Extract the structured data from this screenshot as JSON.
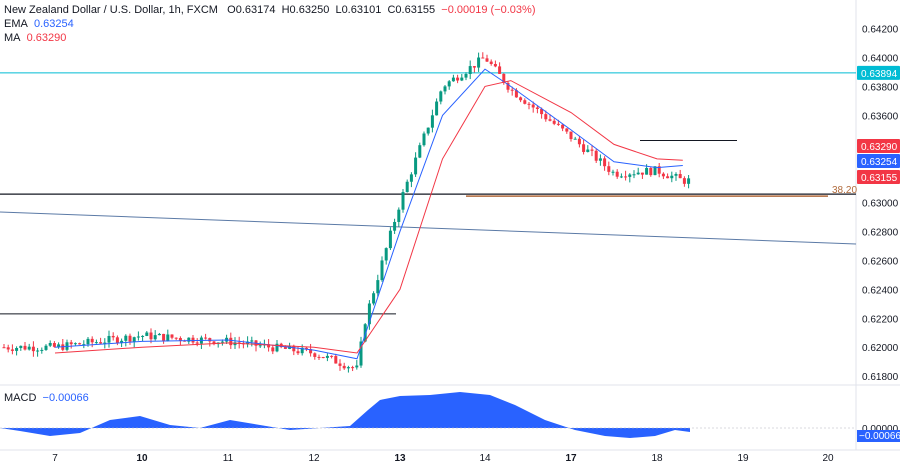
{
  "header": {
    "title": "New Zealand Dollar / U.S. Dollar, 1h, FXCM",
    "open_label": "O",
    "open": "0.63174",
    "high_label": "H",
    "high": "0.63250",
    "low_label": "L",
    "low": "0.63101",
    "close_label": "C",
    "close": "0.63155",
    "change": "−0.00019 (−0.03%)"
  },
  "indicators": {
    "ema_label": "EMA",
    "ema_value": "0.63254",
    "ma_label": "MA",
    "ma_value": "0.63290",
    "macd_label": "MACD",
    "macd_value": "−0.00066"
  },
  "colors": {
    "up": "#089981",
    "down": "#f23645",
    "ema": "#2962ff",
    "ma": "#f23645",
    "macd": "#2962ff",
    "resistance": "#00bcd4",
    "fib": "#b06a3b",
    "trend": "#5b7aa6"
  },
  "chart_data": {
    "type": "line",
    "title": "New Zealand Dollar / U.S. Dollar, 1h, FXCM",
    "ylim": [
      0.6176,
      0.643
    ],
    "y_ticks": [
      "0.64200",
      "0.64000",
      "0.63800",
      "0.63600",
      "0.63400",
      "0.63200",
      "0.63000",
      "0.62800",
      "0.62600",
      "0.62400",
      "0.62200",
      "0.62000",
      "0.61800"
    ],
    "x_ticks": [
      "7",
      "10",
      "11",
      "12",
      "13",
      "14",
      "17",
      "18",
      "19",
      "20"
    ],
    "x_ticks_bold": [
      "10",
      "13",
      "17"
    ],
    "series": [
      {
        "name": "Price",
        "x": [
          "7",
          "10",
          "11",
          "12",
          "12.5",
          "12.6",
          "13",
          "13.5",
          "14",
          "14.3",
          "17",
          "17.5",
          "18",
          "18.3"
        ],
        "values": [
          0.62,
          0.6208,
          0.6204,
          0.6196,
          0.6185,
          0.622,
          0.63,
          0.638,
          0.64,
          0.6378,
          0.6345,
          0.632,
          0.6322,
          0.6315
        ]
      },
      {
        "name": "EMA",
        "x": [
          "7",
          "10",
          "11",
          "12",
          "12.5",
          "13",
          "13.5",
          "14",
          "14.3",
          "17",
          "17.5",
          "18",
          "18.3"
        ],
        "values": [
          0.62,
          0.6204,
          0.6205,
          0.6198,
          0.6192,
          0.628,
          0.636,
          0.6392,
          0.638,
          0.635,
          0.6328,
          0.6324,
          0.63254
        ]
      },
      {
        "name": "MA",
        "x": [
          "7",
          "10",
          "11",
          "12",
          "12.5",
          "13",
          "13.5",
          "14",
          "14.3",
          "17",
          "17.5",
          "18",
          "18.3"
        ],
        "values": [
          0.6196,
          0.62,
          0.6203,
          0.62,
          0.6196,
          0.624,
          0.633,
          0.638,
          0.6384,
          0.6362,
          0.634,
          0.633,
          0.6329
        ]
      }
    ],
    "price_labels": [
      {
        "text": "0.63894",
        "value": 0.63894,
        "color": "#00bcd4"
      },
      {
        "text": "0.63290",
        "value": 0.6329,
        "color": "#f23645"
      },
      {
        "text": "0.63254",
        "value": 0.63254,
        "color": "#2962ff"
      },
      {
        "text": "0.63155",
        "value": 0.63155,
        "color": "#f23645"
      }
    ],
    "horizontal_levels": [
      {
        "name": "resistance",
        "value": 0.63894
      },
      {
        "name": "support",
        "value": 0.6305
      },
      {
        "name": "range-top",
        "value": 0.6223
      },
      {
        "name": "local-high",
        "value": 0.63427
      }
    ],
    "fib_label": "38.20",
    "macd": {
      "ylim": [
        -0.0008,
        0.0016
      ],
      "ticks": [
        "0.00000"
      ],
      "value_label": "−0.00066"
    },
    "grid": false
  }
}
